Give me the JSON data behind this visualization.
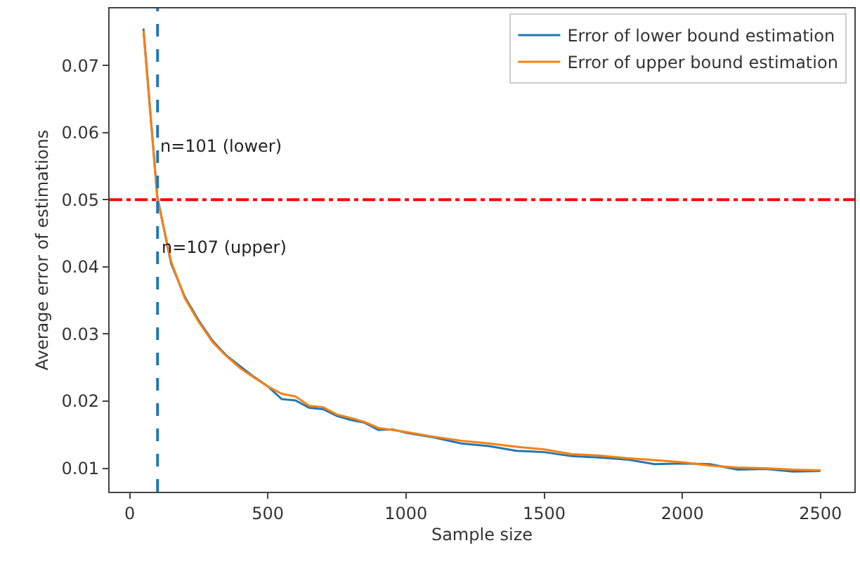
{
  "chart_data": {
    "type": "line",
    "xlabel": "Sample size",
    "ylabel": "Average error of estimations",
    "x": [
      50,
      100,
      150,
      200,
      250,
      300,
      350,
      400,
      450,
      500,
      550,
      600,
      650,
      700,
      750,
      800,
      850,
      900,
      950,
      1000,
      1100,
      1200,
      1300,
      1400,
      1500,
      1600,
      1700,
      1800,
      1900,
      2000,
      2100,
      2200,
      2300,
      2400,
      2500
    ],
    "series": [
      {
        "name": "Error of lower bound estimation",
        "color": "#1f77b4",
        "values": [
          0.0755,
          0.0505,
          0.0405,
          0.0355,
          0.032,
          0.029,
          0.0268,
          0.0252,
          0.0236,
          0.0222,
          0.0203,
          0.0201,
          0.019,
          0.0188,
          0.0178,
          0.0172,
          0.0168,
          0.0157,
          0.0158,
          0.0153,
          0.0146,
          0.0137,
          0.0133,
          0.0126,
          0.0124,
          0.0118,
          0.0116,
          0.0113,
          0.0106,
          0.0107,
          0.0106,
          0.0098,
          0.0099,
          0.0095,
          0.0096
        ]
      },
      {
        "name": "Error of upper bound estimation",
        "color": "#ff7f0e",
        "values": [
          0.0752,
          0.0503,
          0.0408,
          0.0353,
          0.0318,
          0.0288,
          0.0267,
          0.0249,
          0.0235,
          0.0222,
          0.0211,
          0.0207,
          0.0193,
          0.0191,
          0.018,
          0.0175,
          0.0169,
          0.016,
          0.0157,
          0.0154,
          0.0147,
          0.0141,
          0.0137,
          0.0132,
          0.0128,
          0.0121,
          0.0119,
          0.0115,
          0.0112,
          0.0109,
          0.0104,
          0.0101,
          0.01,
          0.0098,
          0.0097
        ]
      }
    ],
    "xlim": [
      -72.5,
      2622.5
    ],
    "ylim": [
      0.0065,
      0.0785
    ],
    "xticks": [
      0,
      500,
      1000,
      1500,
      2000,
      2500
    ],
    "yticks": [
      0.01,
      0.02,
      0.03,
      0.04,
      0.05,
      0.06,
      0.07
    ],
    "ref_lines": [
      {
        "axis": "x",
        "value": 101,
        "color": "#1f77b4",
        "line_style": "dashed"
      },
      {
        "axis": "y",
        "value": 0.05,
        "color": "#ff0000",
        "line_style": "dashdot"
      }
    ],
    "annotations": [
      {
        "text": "n=101 (lower)",
        "x": 101,
        "y": 0.058
      },
      {
        "text": "n=107 (upper)",
        "x": 107,
        "y": 0.043
      }
    ],
    "legend": "top right",
    "grid": false,
    "line_style": "solid",
    "marker": "none"
  }
}
